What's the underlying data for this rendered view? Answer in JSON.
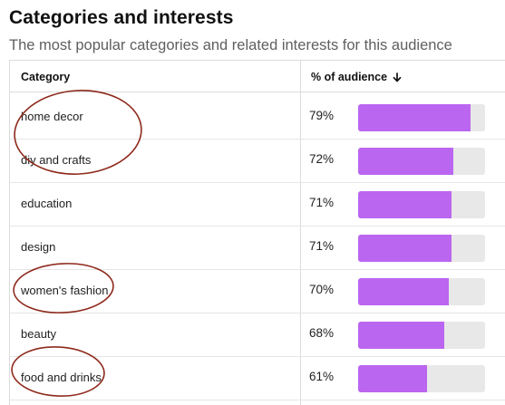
{
  "title": "Categories and interests",
  "subtitle": "The most popular categories and related interests for this audience",
  "table": {
    "headers": {
      "category": "Category",
      "percent": "% of audience"
    },
    "sort_icon": "arrow-down-icon",
    "rows": [
      {
        "category": "home decor",
        "percent": "79%",
        "value": 0.79,
        "circled": true
      },
      {
        "category": "diy and crafts",
        "percent": "72%",
        "value": 0.72,
        "circled": true
      },
      {
        "category": "education",
        "percent": "71%",
        "value": 0.71,
        "circled": false
      },
      {
        "category": "design",
        "percent": "71%",
        "value": 0.71,
        "circled": false
      },
      {
        "category": "women's fashion",
        "percent": "70%",
        "value": 0.7,
        "circled": true
      },
      {
        "category": "beauty",
        "percent": "68%",
        "value": 0.68,
        "circled": false
      },
      {
        "category": "food and drinks",
        "percent": "61%",
        "value": 0.61,
        "circled": true
      }
    ]
  },
  "colors": {
    "bar_fill": "#bb66f0",
    "bar_track": "#e8e8e8",
    "annotation": "#8e2a1c"
  }
}
